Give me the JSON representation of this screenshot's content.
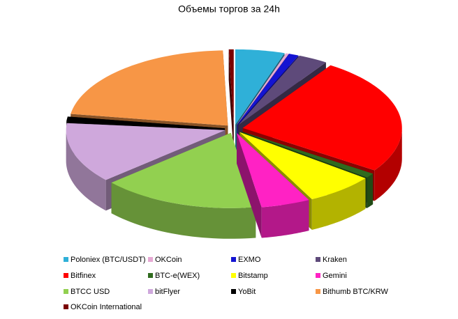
{
  "chart_data": {
    "type": "pie3d",
    "title": "Объемы торгов за 24h",
    "categories": [
      "Poloniex (BTC/USDT)",
      "OKCoin",
      "EXMO",
      "Kraken",
      "Bitfinex",
      "BTC-e(WEX)",
      "Bitstamp",
      "Gemini",
      "BTCC  USD",
      "bitFlyer",
      "YoBit",
      "Bithumb BTC/KRW",
      "OKCoin  International"
    ],
    "values": [
      5,
      0.3,
      1,
      3,
      25.2,
      1,
      7,
      5,
      16,
      13,
      1,
      22,
      0.5
    ],
    "colors": [
      "#2fb0d8",
      "#e6a9d4",
      "#1414d2",
      "#5e4a7a",
      "#ff0000",
      "#2f6a1e",
      "#ffff00",
      "#ff22c4",
      "#92d050",
      "#cfa8dc",
      "#000000",
      "#f79646",
      "#7a0000"
    ]
  }
}
